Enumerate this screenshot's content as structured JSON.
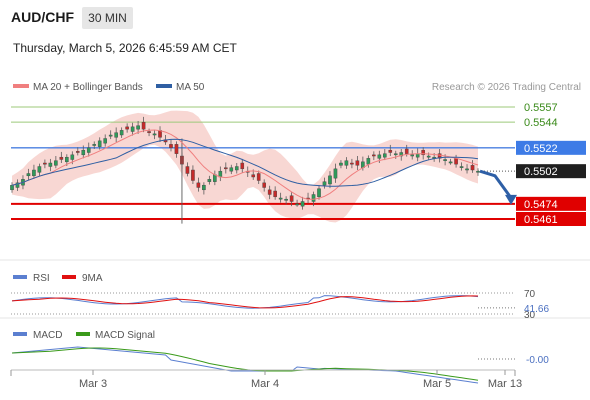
{
  "header": {
    "symbol": "AUD/CHF",
    "timeframe": "30 MIN",
    "datetime": "Thursday, March 5, 2026 6:45:59 AM CET"
  },
  "legend": {
    "ma20_label": "MA 20 + Bollinger Bands",
    "ma50_label": "MA 50",
    "credit": "Research © 2026 Trading Central",
    "ma20_color": "#f07f7f",
    "ma50_color": "#2f5fa3"
  },
  "rsi_legend": {
    "rsi_label": "RSI",
    "ma_label": "9MA",
    "rsi_color": "#5b7fd0",
    "ma_color": "#e01010"
  },
  "macd_legend": {
    "macd_label": "MACD",
    "signal_label": "MACD Signal",
    "macd_color": "#5b7fd0",
    "signal_color": "#3a9a1a"
  },
  "chart_data": {
    "type": "candlestick",
    "title": "AUD/CHF",
    "x_ticks": [
      "Mar 3",
      "Mar 4",
      "Mar 5",
      "Mar 13"
    ],
    "price_axis_labels": [
      {
        "value": 0.5557,
        "text": "0.5557",
        "kind": "resistance"
      },
      {
        "value": 0.5544,
        "text": "0.5544",
        "kind": "resistance"
      },
      {
        "value": 0.5522,
        "text": "0.5522",
        "kind": "pivot"
      },
      {
        "value": 0.5502,
        "text": "0.5502",
        "kind": "last"
      },
      {
        "value": 0.5474,
        "text": "0.5474",
        "kind": "support"
      },
      {
        "value": 0.5461,
        "text": "0.5461",
        "kind": "support"
      }
    ],
    "last_price": 0.5502,
    "close_series": [
      0.549,
      0.5492,
      0.5495,
      0.55,
      0.5503,
      0.5506,
      0.5508,
      0.5509,
      0.5511,
      0.5512,
      0.5514,
      0.5516,
      0.5518,
      0.552,
      0.5522,
      0.5525,
      0.5528,
      0.553,
      0.5533,
      0.5535,
      0.5537,
      0.5538,
      0.554,
      0.5541,
      0.5538,
      0.5535,
      0.5534,
      0.5531,
      0.5527,
      0.5522,
      0.5517,
      0.5508,
      0.55,
      0.5494,
      0.5488,
      0.549,
      0.5495,
      0.5499,
      0.5502,
      0.5504,
      0.5505,
      0.5506,
      0.5504,
      0.5501,
      0.5497,
      0.5494,
      0.5488,
      0.5482,
      0.548,
      0.5479,
      0.5478,
      0.5476,
      0.5474,
      0.5476,
      0.5478,
      0.5482,
      0.5487,
      0.5493,
      0.5498,
      0.5504,
      0.5509,
      0.5511,
      0.5508,
      0.5507,
      0.551,
      0.5513,
      0.5515,
      0.5516,
      0.5517,
      0.5518,
      0.5517,
      0.5518,
      0.5517,
      0.5516,
      0.5517,
      0.5516,
      0.5515,
      0.5514,
      0.5513,
      0.5512,
      0.551,
      0.5508,
      0.5506,
      0.5504,
      0.5503,
      0.5502
    ],
    "forecast_path": [
      0.5502,
      0.5498,
      0.5474
    ],
    "rsi": {
      "last_value": 41.66,
      "levels": [
        70,
        30
      ],
      "last_text": "41.66",
      "level_texts": [
        "70",
        "30"
      ]
    },
    "macd": {
      "last_value": -0.0,
      "last_text": "-0.00"
    }
  }
}
